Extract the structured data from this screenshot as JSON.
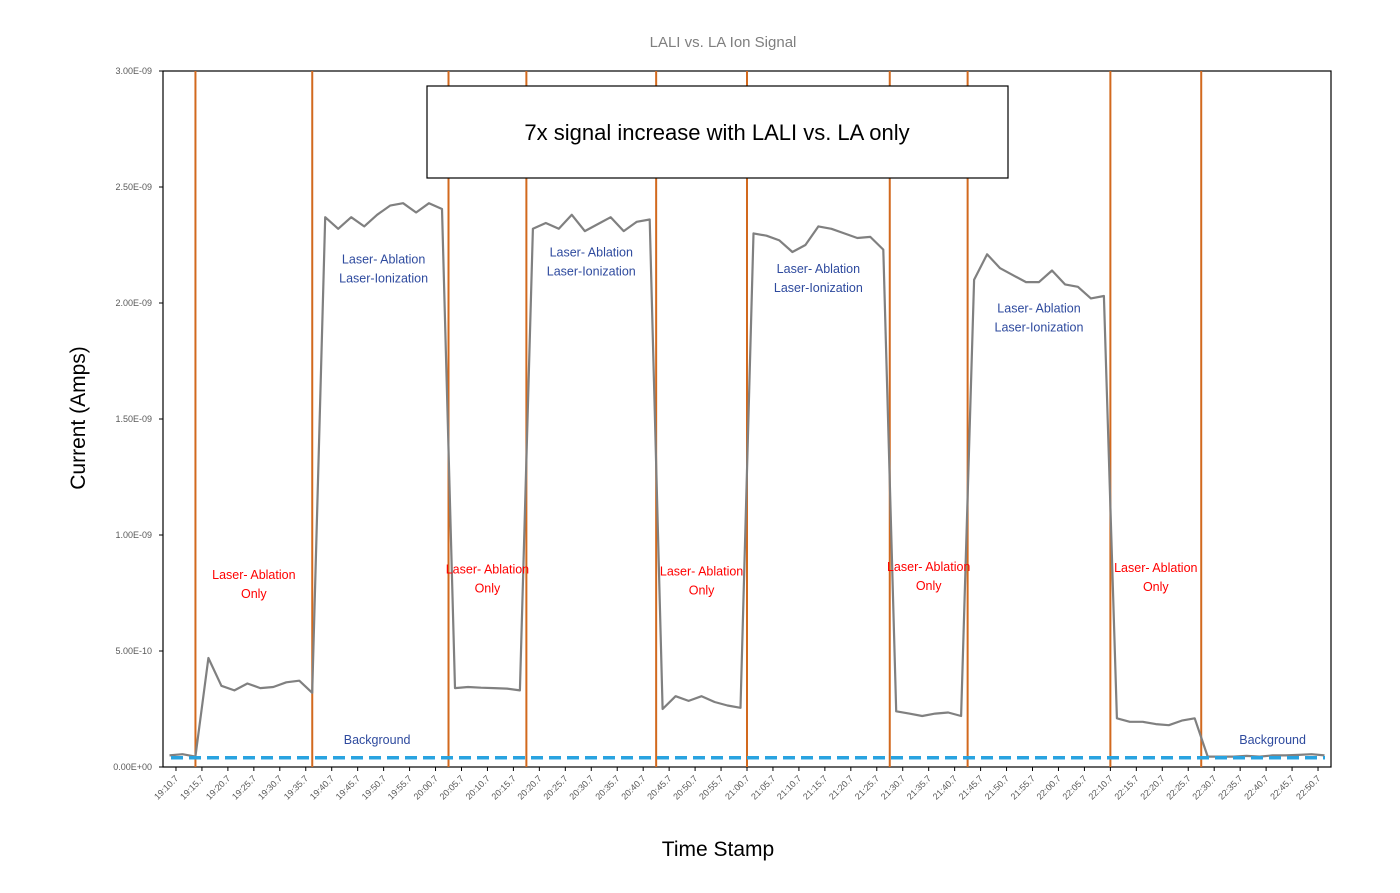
{
  "chart_data": {
    "type": "line",
    "title": "LALI vs. LA Ion Signal",
    "xlabel": "Time Stamp",
    "ylabel": "Current (Amps)",
    "ylim": [
      0,
      3e-09
    ],
    "y_ticks": [
      {
        "value": 0,
        "label": "0.00E+00"
      },
      {
        "value": 5e-10,
        "label": "5.00E-10"
      },
      {
        "value": 1e-09,
        "label": "1.00E-09"
      },
      {
        "value": 1.5e-09,
        "label": "1.50E-09"
      },
      {
        "value": 2e-09,
        "label": "2.00E-09"
      },
      {
        "value": 2.5e-09,
        "label": "2.50E-09"
      },
      {
        "value": 3e-09,
        "label": "3.00E-09"
      }
    ],
    "x_tick_labels": [
      "19:10.7",
      "19:15.7",
      "19:20.7",
      "19:25.7",
      "19:30.7",
      "19:35.7",
      "19:40.7",
      "19:45.7",
      "19:50.7",
      "19:55.7",
      "20:00.7",
      "20:05.7",
      "20:10.7",
      "20:15.7",
      "20:20.7",
      "20:25.7",
      "20:30.7",
      "20:35.7",
      "20:40.7",
      "20:45.7",
      "20:50.7",
      "20:55.7",
      "21:00.7",
      "21:05.7",
      "21:10.7",
      "21:15.7",
      "21:20.7",
      "21:25.7",
      "21:30.7",
      "21:35.7",
      "21:40.7",
      "21:45.7",
      "21:50.7",
      "21:55.7",
      "22:00.7",
      "22:05.7",
      "22:10.7",
      "22:15.7",
      "22:20.7",
      "22:25.7",
      "22:30.7",
      "22:35.7",
      "22:40.7",
      "22:45.7",
      "22:50.7"
    ],
    "series": [
      {
        "color": "#808080",
        "points": [
          [
            0,
            5e-11
          ],
          [
            1,
            5.5e-11
          ],
          [
            2,
            4.5e-11
          ],
          [
            3,
            4.7e-10
          ],
          [
            4,
            3.5e-10
          ],
          [
            5,
            3.3e-10
          ],
          [
            6,
            3.6e-10
          ],
          [
            7,
            3.4e-10
          ],
          [
            8,
            3.45e-10
          ],
          [
            9,
            3.65e-10
          ],
          [
            10,
            3.72e-10
          ],
          [
            11,
            3.2e-10
          ],
          [
            12,
            2.37e-09
          ],
          [
            13,
            2.32e-09
          ],
          [
            14,
            2.37e-09
          ],
          [
            15,
            2.33e-09
          ],
          [
            16,
            2.38e-09
          ],
          [
            17,
            2.42e-09
          ],
          [
            18,
            2.43e-09
          ],
          [
            19,
            2.39e-09
          ],
          [
            20,
            2.43e-09
          ],
          [
            21,
            2.405e-09
          ],
          [
            22,
            3.4e-10
          ],
          [
            23,
            3.45e-10
          ],
          [
            24,
            3.42e-10
          ],
          [
            25,
            3.4e-10
          ],
          [
            26,
            3.38e-10
          ],
          [
            27,
            3.3e-10
          ],
          [
            28,
            2.32e-09
          ],
          [
            29,
            2.345e-09
          ],
          [
            30,
            2.32e-09
          ],
          [
            31,
            2.38e-09
          ],
          [
            32,
            2.31e-09
          ],
          [
            33,
            2.34e-09
          ],
          [
            34,
            2.37e-09
          ],
          [
            35,
            2.31e-09
          ],
          [
            36,
            2.35e-09
          ],
          [
            37,
            2.36e-09
          ],
          [
            38,
            2.5e-10
          ],
          [
            39,
            3.05e-10
          ],
          [
            40,
            2.85e-10
          ],
          [
            41,
            3.05e-10
          ],
          [
            42,
            2.8e-10
          ],
          [
            43,
            2.65e-10
          ],
          [
            44,
            2.55e-10
          ],
          [
            45,
            2.3e-09
          ],
          [
            46,
            2.29e-09
          ],
          [
            47,
            2.27e-09
          ],
          [
            48,
            2.22e-09
          ],
          [
            49,
            2.25e-09
          ],
          [
            50,
            2.33e-09
          ],
          [
            51,
            2.32e-09
          ],
          [
            52,
            2.3e-09
          ],
          [
            53,
            2.28e-09
          ],
          [
            54,
            2.285e-09
          ],
          [
            55,
            2.23e-09
          ],
          [
            56,
            2.4e-10
          ],
          [
            57,
            2.3e-10
          ],
          [
            58,
            2.2e-10
          ],
          [
            59,
            2.3e-10
          ],
          [
            60,
            2.35e-10
          ],
          [
            61,
            2.2e-10
          ],
          [
            62,
            2.1e-09
          ],
          [
            63,
            2.21e-09
          ],
          [
            64,
            2.15e-09
          ],
          [
            65,
            2.12e-09
          ],
          [
            66,
            2.09e-09
          ],
          [
            67,
            2.09e-09
          ],
          [
            68,
            2.14e-09
          ],
          [
            69,
            2.08e-09
          ],
          [
            70,
            2.07e-09
          ],
          [
            71,
            2.02e-09
          ],
          [
            72,
            2.03e-09
          ],
          [
            73,
            2.1e-10
          ],
          [
            74,
            1.95e-10
          ],
          [
            75,
            1.95e-10
          ],
          [
            76,
            1.85e-10
          ],
          [
            77,
            1.8e-10
          ],
          [
            78,
            2e-10
          ],
          [
            79,
            2.1e-10
          ],
          [
            80,
            4.5e-11
          ],
          [
            81,
            4.5e-11
          ],
          [
            82,
            4.5e-11
          ],
          [
            83,
            4.8e-11
          ],
          [
            84,
            4.5e-11
          ],
          [
            85,
            5e-11
          ],
          [
            86,
            5e-11
          ],
          [
            87,
            5.2e-11
          ],
          [
            88,
            5.5e-11
          ],
          [
            89,
            5e-11
          ]
        ]
      }
    ],
    "point_count": 90,
    "background_level": 4e-11,
    "divider_positions": [
      2,
      11,
      21.5,
      27.5,
      37.5,
      44.5,
      55.5,
      61.5,
      72.5,
      79.5
    ],
    "divider_color": "#d2691e",
    "background_line_color": "#29a3e0",
    "callout": "7x signal increase with LALI vs. LA only",
    "annotations": [
      {
        "lines": [
          "Laser- Ablation",
          "Only"
        ],
        "x": 6.5,
        "y": 8.1e-10,
        "color": "#ff0000"
      },
      {
        "lines": [
          "Laser- Ablation",
          "Laser-Ionization"
        ],
        "x": 16.5,
        "y": 2.17e-09,
        "color": "#2e4a9e"
      },
      {
        "lines": [
          "Laser- Ablation",
          "Only"
        ],
        "x": 24.5,
        "y": 8.35e-10,
        "color": "#ff0000"
      },
      {
        "lines": [
          "Laser- Ablation",
          "Laser-Ionization"
        ],
        "x": 32.5,
        "y": 2.2e-09,
        "color": "#2e4a9e"
      },
      {
        "lines": [
          "Laser- Ablation",
          "Only"
        ],
        "x": 41,
        "y": 8.25e-10,
        "color": "#ff0000"
      },
      {
        "lines": [
          "Laser- Ablation",
          "Laser-Ionization"
        ],
        "x": 50,
        "y": 2.13e-09,
        "color": "#2e4a9e"
      },
      {
        "lines": [
          "Laser- Ablation",
          "Only"
        ],
        "x": 58.5,
        "y": 8.45e-10,
        "color": "#ff0000"
      },
      {
        "lines": [
          "Laser- Ablation",
          "Laser-Ionization"
        ],
        "x": 67,
        "y": 1.96e-09,
        "color": "#2e4a9e"
      },
      {
        "lines": [
          "Laser- Ablation",
          "Only"
        ],
        "x": 76,
        "y": 8.4e-10,
        "color": "#ff0000"
      },
      {
        "lines": [
          "Background"
        ],
        "x": 16,
        "y": 1e-10,
        "color": "#2e4a9e"
      },
      {
        "lines": [
          "Background"
        ],
        "x": 85,
        "y": 1e-10,
        "color": "#2e4a9e"
      }
    ]
  }
}
